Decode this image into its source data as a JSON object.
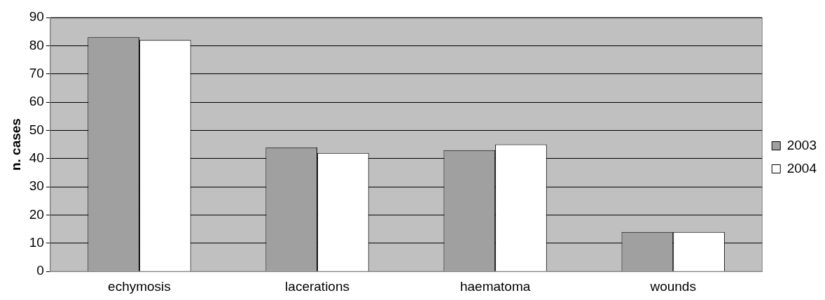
{
  "chart_data": {
    "type": "bar",
    "ylabel": "n. cases",
    "categories": [
      "echymosis",
      "lacerations",
      "haematoma",
      "wounds"
    ],
    "series": [
      {
        "name": "2003",
        "color": "#a0a0a0",
        "values": [
          83,
          44,
          43,
          14
        ]
      },
      {
        "name": "2004",
        "color": "#ffffff",
        "values": [
          82,
          42,
          45,
          14
        ]
      }
    ],
    "ylim": [
      0,
      90
    ],
    "yticks": [
      0,
      10,
      20,
      30,
      40,
      50,
      60,
      70,
      80,
      90
    ],
    "grid": "y",
    "legend": "right"
  }
}
